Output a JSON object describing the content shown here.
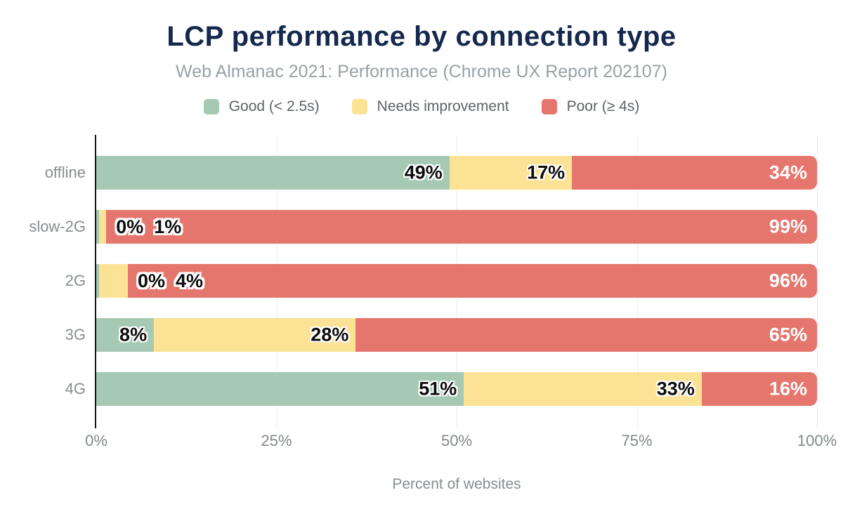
{
  "title": "LCP performance by connection type",
  "subtitle": "Web Almanac 2021: Performance (Chrome UX Report 202107)",
  "colors": {
    "good": "#a6c9b4",
    "needs_improvement": "#fce294",
    "poor": "#e5766e",
    "title_text": "#15294e",
    "subtitle_text": "#9aa1a7",
    "axis_text": "#82888d",
    "gridline": "#ececec"
  },
  "chart_data": {
    "type": "bar",
    "stacked": true,
    "orientation": "horizontal",
    "title": "LCP performance by connection type",
    "subtitle": "Web Almanac 2021: Performance (Chrome UX Report 202107)",
    "categories": [
      "offline",
      "slow-2G",
      "2G",
      "3G",
      "4G"
    ],
    "series": [
      {
        "name": "Good (< 2.5s)",
        "color": "#a6c9b4",
        "values": [
          49,
          0,
          0,
          8,
          51
        ]
      },
      {
        "name": "Needs improvement",
        "color": "#fce294",
        "values": [
          17,
          1,
          4,
          28,
          33
        ]
      },
      {
        "name": "Poor (≥ 4s)",
        "color": "#e5766e",
        "values": [
          34,
          99,
          96,
          65,
          16
        ]
      }
    ],
    "bar_value_labels": [
      [
        "49%",
        "17%",
        "34%"
      ],
      [
        "0%",
        "1%",
        "99%"
      ],
      [
        "0%",
        "4%",
        "96%"
      ],
      [
        "8%",
        "28%",
        "65%"
      ],
      [
        "51%",
        "33%",
        "16%"
      ]
    ],
    "xlabel": "Percent of websites",
    "x_ticks": [
      "0%",
      "25%",
      "50%",
      "75%",
      "100%"
    ],
    "x_tick_values": [
      0,
      25,
      50,
      75,
      100
    ],
    "xlim": [
      0,
      100
    ],
    "legend_position": "top",
    "grid": "vertical"
  }
}
